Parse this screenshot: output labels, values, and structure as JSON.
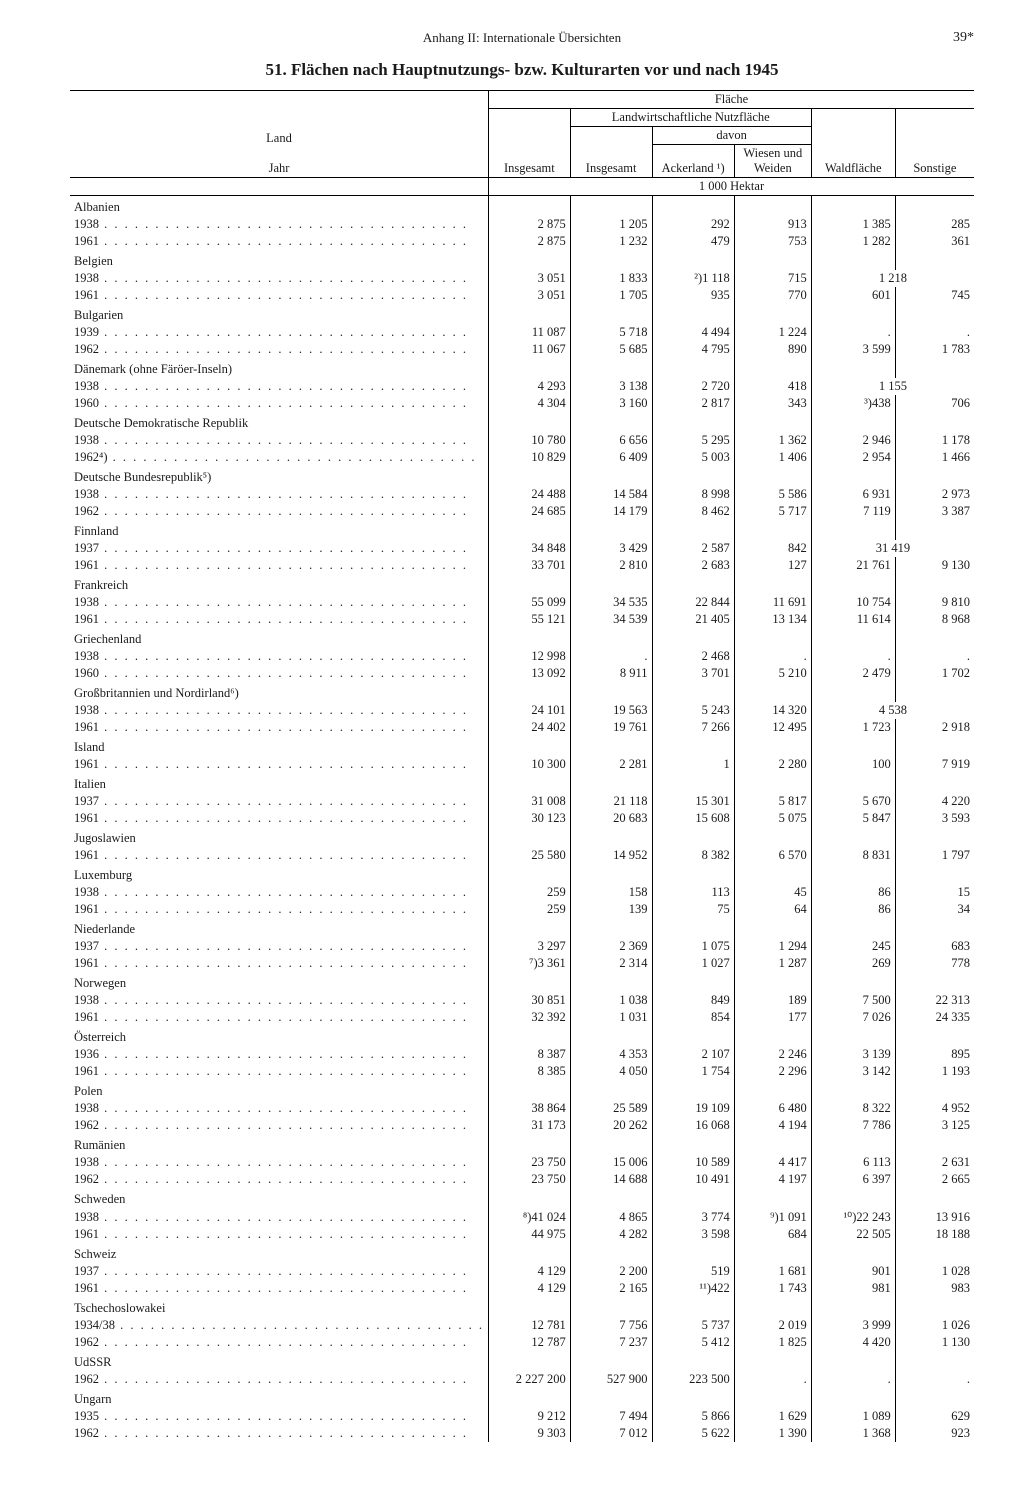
{
  "page": {
    "running_head": "Anhang II: Internationale Übersichten",
    "page_number": "39*",
    "title": "51. Flächen nach Hauptnutzungs- bzw. Kulturarten vor und nach 1945"
  },
  "headers": {
    "land_jahr_a": "Land",
    "land_jahr_b": "Jahr",
    "flaeche": "Fläche",
    "insgesamt": "Insgesamt",
    "lnf": "Landwirtschaftliche Nutzfläche",
    "davon": "davon",
    "ackerland": "Ackerland ¹)",
    "wiesen": "Wiesen und Weiden",
    "wald": "Waldfläche",
    "sonstige": "Sonstige",
    "unit": "1 000 Hektar"
  },
  "countries": [
    {
      "name": "Albanien",
      "rows": [
        {
          "year": "1938",
          "c": [
            "2 875",
            "1 205",
            "292",
            "913",
            "1 385",
            "285"
          ]
        },
        {
          "year": "1961",
          "c": [
            "2 875",
            "1 232",
            "479",
            "753",
            "1 282",
            "361"
          ]
        }
      ]
    },
    {
      "name": "Belgien",
      "rows": [
        {
          "year": "1938",
          "c": [
            "3 051",
            "1 833",
            "²)1 118",
            "715",
            "1 218",
            ""
          ],
          "span56": true
        },
        {
          "year": "1961",
          "c": [
            "3 051",
            "1 705",
            "935",
            "770",
            "601",
            "745"
          ]
        }
      ]
    },
    {
      "name": "Bulgarien",
      "rows": [
        {
          "year": "1939",
          "c": [
            "11 087",
            "5 718",
            "4 494",
            "1 224",
            ".",
            "."
          ]
        },
        {
          "year": "1962",
          "c": [
            "11 067",
            "5 685",
            "4 795",
            "890",
            "3 599",
            "1 783"
          ]
        }
      ]
    },
    {
      "name": "Dänemark (ohne Färöer-Inseln)",
      "rows": [
        {
          "year": "1938",
          "c": [
            "4 293",
            "3 138",
            "2 720",
            "418",
            "1 155",
            ""
          ],
          "span56": true
        },
        {
          "year": "1960",
          "c": [
            "4 304",
            "3 160",
            "2 817",
            "343",
            "³)438",
            "706"
          ]
        }
      ]
    },
    {
      "name": "Deutsche Demokratische Republik",
      "rows": [
        {
          "year": "1938",
          "c": [
            "10 780",
            "6 656",
            "5 295",
            "1 362",
            "2 946",
            "1 178"
          ]
        },
        {
          "year": "1962⁴)",
          "c": [
            "10 829",
            "6 409",
            "5 003",
            "1 406",
            "2 954",
            "1 466"
          ]
        }
      ]
    },
    {
      "name": "Deutsche Bundesrepublik⁵)",
      "rows": [
        {
          "year": "1938",
          "c": [
            "24 488",
            "14 584",
            "8 998",
            "5 586",
            "6 931",
            "2 973"
          ]
        },
        {
          "year": "1962",
          "c": [
            "24 685",
            "14 179",
            "8 462",
            "5 717",
            "7 119",
            "3 387"
          ]
        }
      ]
    },
    {
      "name": "Finnland",
      "rows": [
        {
          "year": "1937",
          "c": [
            "34 848",
            "3 429",
            "2 587",
            "842",
            "31 419",
            ""
          ],
          "span56": true
        },
        {
          "year": "1961",
          "c": [
            "33 701",
            "2 810",
            "2 683",
            "127",
            "21 761",
            "9 130"
          ]
        }
      ]
    },
    {
      "name": "Frankreich",
      "rows": [
        {
          "year": "1938",
          "c": [
            "55 099",
            "34 535",
            "22 844",
            "11 691",
            "10 754",
            "9 810"
          ]
        },
        {
          "year": "1961",
          "c": [
            "55 121",
            "34 539",
            "21 405",
            "13 134",
            "11 614",
            "8 968"
          ]
        }
      ]
    },
    {
      "name": "Griechenland",
      "rows": [
        {
          "year": "1938",
          "c": [
            "12 998",
            ".",
            "2 468",
            ".",
            ".",
            "."
          ]
        },
        {
          "year": "1960",
          "c": [
            "13 092",
            "8 911",
            "3 701",
            "5 210",
            "2 479",
            "1 702"
          ]
        }
      ]
    },
    {
      "name": "Großbritannien und Nordirland⁶)",
      "rows": [
        {
          "year": "1938",
          "c": [
            "24 101",
            "19 563",
            "5 243",
            "14 320",
            "4 538",
            ""
          ],
          "span56": true
        },
        {
          "year": "1961",
          "c": [
            "24 402",
            "19 761",
            "7 266",
            "12 495",
            "1 723",
            "2 918"
          ]
        }
      ]
    },
    {
      "name": "Island",
      "rows": [
        {
          "year": "1961",
          "c": [
            "10 300",
            "2 281",
            "1",
            "2 280",
            "100",
            "7 919"
          ]
        }
      ]
    },
    {
      "name": "Italien",
      "rows": [
        {
          "year": "1937",
          "c": [
            "31 008",
            "21 118",
            "15 301",
            "5 817",
            "5 670",
            "4 220"
          ]
        },
        {
          "year": "1961",
          "c": [
            "30 123",
            "20 683",
            "15 608",
            "5 075",
            "5 847",
            "3 593"
          ]
        }
      ]
    },
    {
      "name": "Jugoslawien",
      "rows": [
        {
          "year": "1961",
          "c": [
            "25 580",
            "14 952",
            "8 382",
            "6 570",
            "8 831",
            "1 797"
          ]
        }
      ]
    },
    {
      "name": "Luxemburg",
      "rows": [
        {
          "year": "1938",
          "c": [
            "259",
            "158",
            "113",
            "45",
            "86",
            "15"
          ]
        },
        {
          "year": "1961",
          "c": [
            "259",
            "139",
            "75",
            "64",
            "86",
            "34"
          ]
        }
      ]
    },
    {
      "name": "Niederlande",
      "rows": [
        {
          "year": "1937",
          "c": [
            "3 297",
            "2 369",
            "1 075",
            "1 294",
            "245",
            "683"
          ]
        },
        {
          "year": "1961",
          "c": [
            "⁷)3 361",
            "2 314",
            "1 027",
            "1 287",
            "269",
            "778"
          ]
        }
      ]
    },
    {
      "name": "Norwegen",
      "rows": [
        {
          "year": "1938",
          "c": [
            "30 851",
            "1 038",
            "849",
            "189",
            "7 500",
            "22 313"
          ]
        },
        {
          "year": "1961",
          "c": [
            "32 392",
            "1 031",
            "854",
            "177",
            "7 026",
            "24 335"
          ]
        }
      ]
    },
    {
      "name": "Österreich",
      "rows": [
        {
          "year": "1936",
          "c": [
            "8 387",
            "4 353",
            "2 107",
            "2 246",
            "3 139",
            "895"
          ]
        },
        {
          "year": "1961",
          "c": [
            "8 385",
            "4 050",
            "1 754",
            "2 296",
            "3 142",
            "1 193"
          ]
        }
      ]
    },
    {
      "name": "Polen",
      "rows": [
        {
          "year": "1938",
          "c": [
            "38 864",
            "25 589",
            "19 109",
            "6 480",
            "8 322",
            "4 952"
          ]
        },
        {
          "year": "1962",
          "c": [
            "31 173",
            "20 262",
            "16 068",
            "4 194",
            "7 786",
            "3 125"
          ]
        }
      ]
    },
    {
      "name": "Rumänien",
      "rows": [
        {
          "year": "1938",
          "c": [
            "23 750",
            "15 006",
            "10 589",
            "4 417",
            "6 113",
            "2 631"
          ]
        },
        {
          "year": "1962",
          "c": [
            "23 750",
            "14 688",
            "10 491",
            "4 197",
            "6 397",
            "2 665"
          ]
        }
      ]
    },
    {
      "name": "Schweden",
      "rows": [
        {
          "year": "1938",
          "c": [
            "⁸)41 024",
            "4 865",
            "3 774",
            "⁹)1 091",
            "¹⁰)22 243",
            "13 916"
          ]
        },
        {
          "year": "1961",
          "c": [
            "44 975",
            "4 282",
            "3 598",
            "684",
            "22 505",
            "18 188"
          ]
        }
      ]
    },
    {
      "name": "Schweiz",
      "rows": [
        {
          "year": "1937",
          "c": [
            "4 129",
            "2 200",
            "519",
            "1 681",
            "901",
            "1 028"
          ]
        },
        {
          "year": "1961",
          "c": [
            "4 129",
            "2 165",
            "¹¹)422",
            "1 743",
            "981",
            "983"
          ]
        }
      ]
    },
    {
      "name": "Tschechoslowakei",
      "rows": [
        {
          "year": "1934/38",
          "c": [
            "12 781",
            "7 756",
            "5 737",
            "2 019",
            "3 999",
            "1 026"
          ]
        },
        {
          "year": "1962",
          "c": [
            "12 787",
            "7 237",
            "5 412",
            "1 825",
            "4 420",
            "1 130"
          ]
        }
      ]
    },
    {
      "name": "UdSSR",
      "rows": [
        {
          "year": "1962",
          "c": [
            "2 227 200",
            "527 900",
            "223 500",
            ".",
            ".",
            "."
          ]
        }
      ]
    },
    {
      "name": "Ungarn",
      "rows": [
        {
          "year": "1935",
          "c": [
            "9 212",
            "7 494",
            "5 866",
            "1 629",
            "1 089",
            "629"
          ]
        },
        {
          "year": "1962",
          "c": [
            "9 303",
            "7 012",
            "5 622",
            "1 390",
            "1 368",
            "923"
          ]
        }
      ]
    }
  ],
  "col_widths": [
    "250",
    "95",
    "95",
    "95",
    "95",
    "95",
    "95"
  ]
}
